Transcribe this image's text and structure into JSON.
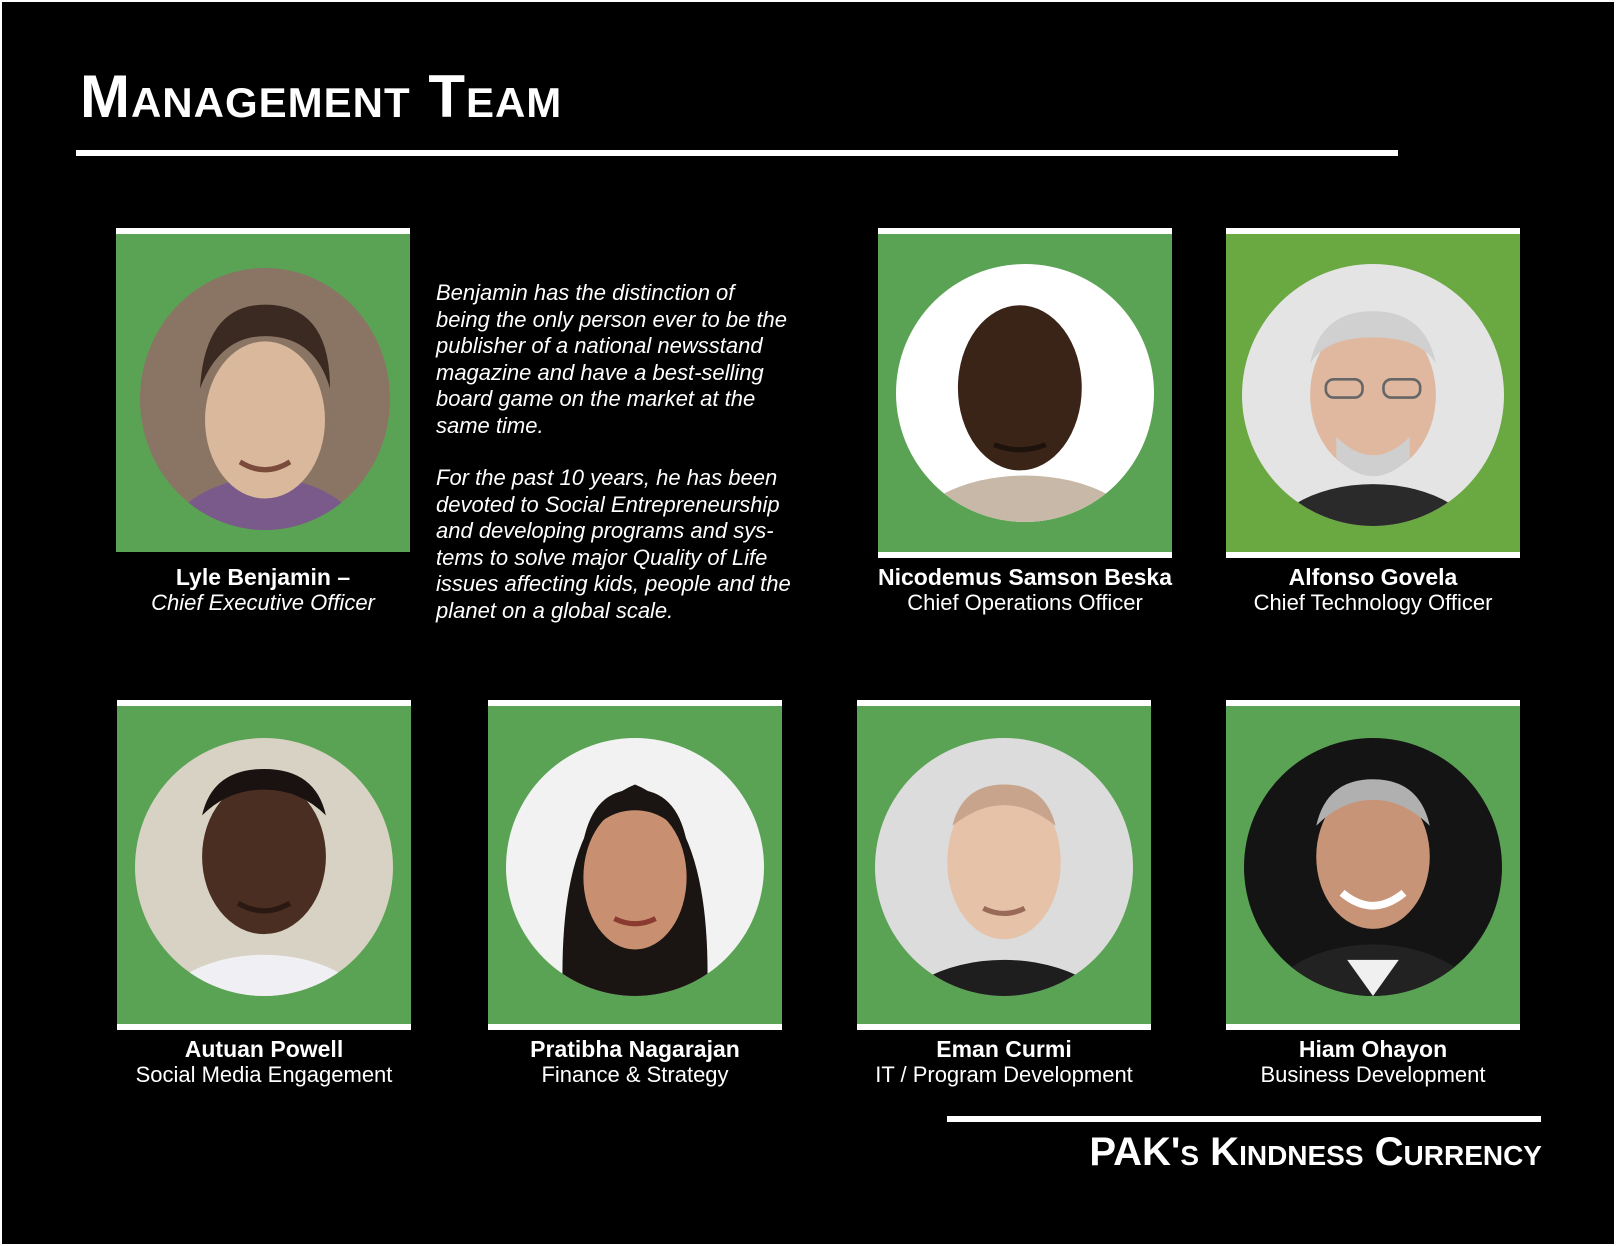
{
  "title": "Management Team",
  "bio": {
    "paragraph1": "Benjamin has the distinction of\nbeing the only person ever to be the\npublisher of a national newsstand\nmagazine and have a best-selling\nboard game on the market at the\nsame time.",
    "paragraph2": "For the past 10 years, he has been\ndevoted to Social Entrepreneurship\nand developing programs and sys-\ntems to solve major Quality of Life\nissues affecting kids, people and the\nplanet on a global scale."
  },
  "team": [
    {
      "name": "Lyle Benjamin –",
      "role": "Chief Executive Officer"
    },
    {
      "name": "Nicodemus Samson Beska",
      "role": "Chief Operations Officer"
    },
    {
      "name": "Alfonso Govela",
      "role": "Chief Technology Officer"
    },
    {
      "name": "Autuan Powell",
      "role": "Social Media Engagement"
    },
    {
      "name": "Pratibha Nagarajan",
      "role": "Finance & Strategy"
    },
    {
      "name": "Eman Curmi",
      "role": "IT / Program Development"
    },
    {
      "name": "Hiam Ohayon",
      "role": "Business Development"
    }
  ],
  "footer": "PAK's Kindness Currency",
  "colors": {
    "background": "#000000",
    "panel_green": "#5aa354",
    "panel_green_alt": "#6aa842",
    "text": "#ffffff"
  },
  "icons": [
    "portrait-photo"
  ]
}
